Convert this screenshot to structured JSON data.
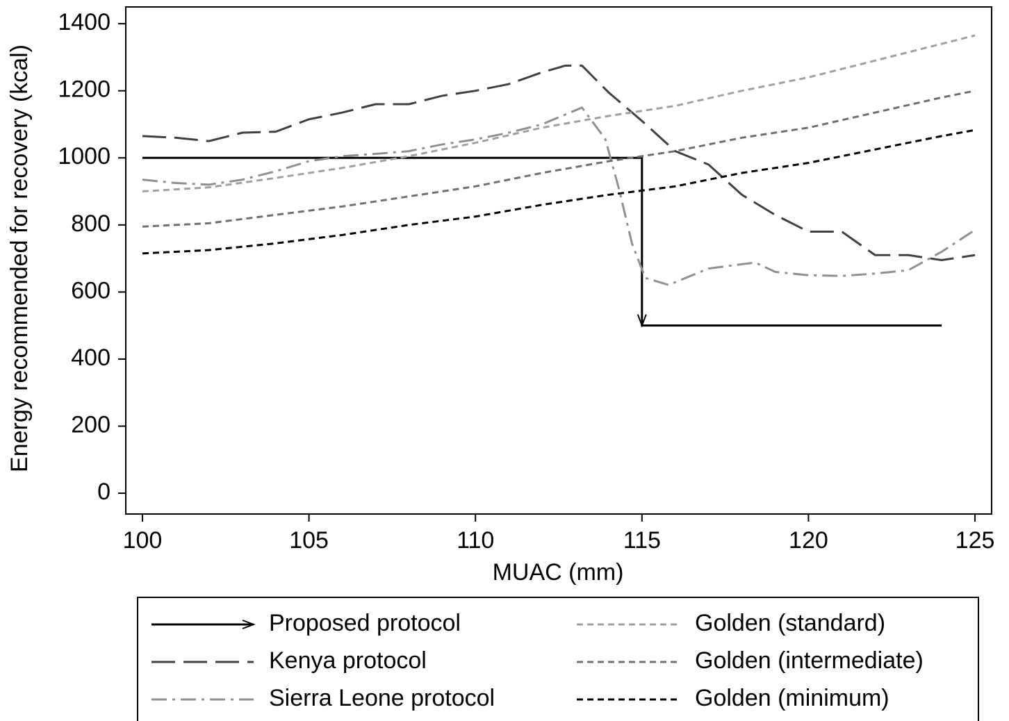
{
  "chart_data": {
    "type": "line",
    "xlabel": "MUAC (mm)",
    "ylabel": "Energy recommended for recovery (kcal)",
    "xlim": [
      99.5,
      125.5
    ],
    "xticks": [
      100,
      105,
      110,
      115,
      120,
      125
    ],
    "ylim": [
      -62,
      1450
    ],
    "yticks": [
      0,
      200,
      400,
      600,
      800,
      1000,
      1200,
      1400
    ],
    "series": [
      {
        "name": "Proposed protocol",
        "color": "#000000",
        "style": "arrow",
        "x": [
          100,
          115,
          115,
          124
        ],
        "values": [
          1000,
          1000,
          500,
          500
        ]
      },
      {
        "name": "Kenya protocol",
        "color": "#404040",
        "style": "longdash",
        "x": [
          100,
          101,
          102,
          103,
          104,
          105,
          106,
          107,
          108,
          109,
          110,
          111,
          112,
          112.7,
          113.2,
          114,
          115,
          116,
          117,
          118,
          119,
          120,
          121,
          122,
          123,
          124,
          125
        ],
        "values": [
          1065,
          1060,
          1050,
          1075,
          1078,
          1115,
          1135,
          1160,
          1160,
          1185,
          1200,
          1220,
          1255,
          1275,
          1275,
          1195,
          1110,
          1020,
          980,
          890,
          830,
          780,
          780,
          710,
          710,
          695,
          710
        ]
      },
      {
        "name": "Sierra Leone protocol",
        "color": "#909090",
        "style": "dashdot",
        "x": [
          100,
          101,
          102,
          103,
          104,
          105,
          106,
          107,
          108,
          109,
          110,
          111,
          112,
          113.2,
          113.9,
          114.3,
          114.7,
          115.1,
          115.8,
          117,
          118.4,
          119,
          120,
          121,
          122,
          123,
          124,
          125
        ],
        "values": [
          935,
          925,
          920,
          935,
          960,
          990,
          1005,
          1012,
          1020,
          1040,
          1055,
          1075,
          1100,
          1150,
          1056,
          911,
          745,
          642,
          621,
          670,
          688,
          660,
          650,
          648,
          655,
          665,
          720,
          785
        ]
      },
      {
        "name": "Golden (standard)",
        "color": "#a0a0a0",
        "style": "shortdash",
        "x": [
          100,
          102,
          104,
          106,
          108,
          110,
          112,
          114,
          116,
          118,
          120,
          122,
          124,
          125
        ],
        "values": [
          900,
          912,
          940,
          970,
          1005,
          1045,
          1090,
          1125,
          1155,
          1200,
          1240,
          1290,
          1340,
          1365
        ]
      },
      {
        "name": "Golden (intermediate)",
        "color": "#707070",
        "style": "shortdash",
        "x": [
          100,
          102,
          104,
          106,
          108,
          110,
          112,
          114,
          116,
          118,
          120,
          122,
          124,
          125
        ],
        "values": [
          795,
          805,
          830,
          855,
          885,
          915,
          955,
          990,
          1020,
          1060,
          1090,
          1135,
          1180,
          1200
        ]
      },
      {
        "name": "Golden (minimum)",
        "color": "#000000",
        "style": "shortdash",
        "x": [
          100,
          102,
          104,
          106,
          108,
          110,
          112,
          114,
          116,
          118,
          120,
          122,
          124,
          125
        ],
        "values": [
          715,
          725,
          745,
          770,
          800,
          825,
          860,
          890,
          915,
          955,
          985,
          1025,
          1065,
          1083
        ]
      }
    ]
  }
}
